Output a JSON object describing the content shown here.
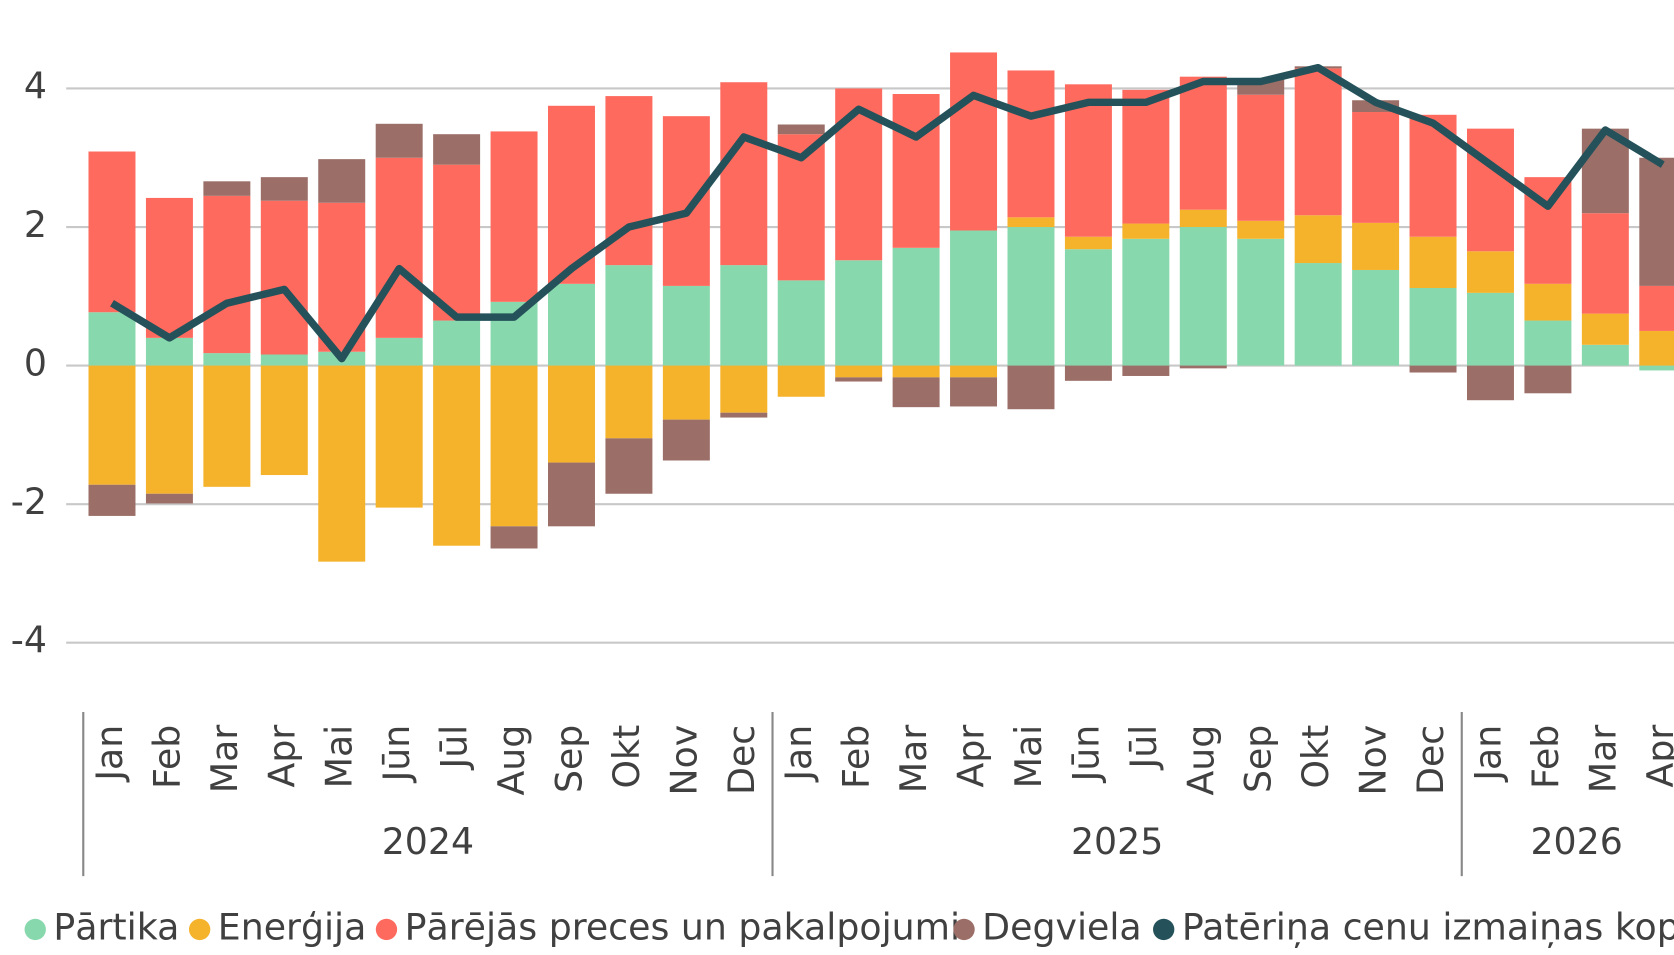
{
  "chart_data": {
    "type": "stacked_bar_line",
    "categories": [
      "Jan",
      "Feb",
      "Mar",
      "Apr",
      "Mai",
      "Jūn",
      "Jūl",
      "Aug",
      "Sep",
      "Okt",
      "Nov",
      "Dec",
      "Jan",
      "Feb",
      "Mar",
      "Apr",
      "Mai",
      "Jūn",
      "Jūl",
      "Aug",
      "Sep",
      "Okt",
      "Nov",
      "Dec",
      "Jan",
      "Feb",
      "Mar",
      "Apr"
    ],
    "years": [
      "2024",
      "2024",
      "2024",
      "2024",
      "2024",
      "2024",
      "2024",
      "2024",
      "2024",
      "2024",
      "2024",
      "2024",
      "2025",
      "2025",
      "2025",
      "2025",
      "2025",
      "2025",
      "2025",
      "2025",
      "2025",
      "2025",
      "2025",
      "2025",
      "2026",
      "2026",
      "2026",
      "2026"
    ],
    "series": [
      {
        "name": "Pārtika",
        "color": "#88d8ad",
        "values": [
          0.77,
          0.4,
          0.18,
          0.16,
          0.2,
          0.4,
          0.65,
          0.92,
          1.18,
          1.45,
          1.15,
          1.45,
          1.23,
          1.52,
          1.7,
          1.95,
          2.0,
          1.68,
          1.83,
          2.0,
          1.83,
          1.48,
          1.38,
          1.12,
          1.05,
          0.65,
          0.3,
          -0.07
        ]
      },
      {
        "name": "Enerģija",
        "color": "#f5b22b",
        "values": [
          -1.72,
          -1.85,
          -1.75,
          -1.58,
          -2.83,
          -2.05,
          -2.6,
          -2.32,
          -1.4,
          -1.05,
          -0.78,
          -0.68,
          -0.45,
          -0.17,
          -0.17,
          -0.17,
          0.14,
          0.18,
          0.22,
          0.25,
          0.26,
          0.69,
          0.68,
          0.74,
          0.6,
          0.53,
          0.45,
          0.5
        ]
      },
      {
        "name": "Pārējās preces un pakalpojumi",
        "color": "#fe6a5e",
        "values": [
          2.32,
          2.02,
          2.27,
          2.22,
          2.15,
          2.6,
          2.25,
          2.46,
          2.57,
          2.44,
          2.45,
          2.64,
          2.11,
          2.48,
          2.22,
          2.57,
          2.12,
          2.2,
          1.93,
          1.92,
          1.82,
          2.12,
          1.6,
          1.76,
          1.77,
          1.54,
          1.45,
          0.65
        ]
      },
      {
        "name": "Degviela",
        "color": "#9b6f68",
        "values": [
          -0.45,
          -0.14,
          0.21,
          0.34,
          0.63,
          0.49,
          0.44,
          -0.32,
          -0.92,
          -0.8,
          -0.59,
          -0.07,
          0.14,
          -0.06,
          -0.43,
          -0.42,
          -0.63,
          -0.22,
          -0.15,
          -0.04,
          0.24,
          0.03,
          0.17,
          -0.1,
          -0.5,
          -0.4,
          1.22,
          1.85
        ]
      },
      {
        "name": "Patēriņa cenu izmaiņas kopā",
        "color": "#25525a",
        "type": "line",
        "values": [
          0.9,
          0.4,
          0.9,
          1.1,
          0.1,
          1.4,
          0.7,
          0.7,
          1.4,
          2.0,
          2.2,
          3.3,
          3.0,
          3.7,
          3.3,
          3.9,
          3.6,
          3.8,
          3.8,
          4.1,
          4.1,
          4.3,
          3.8,
          3.5,
          2.9,
          2.3,
          3.4,
          2.9
        ]
      }
    ],
    "ylim": [
      -5,
      5
    ],
    "yticks": [
      -4,
      -2,
      0,
      2,
      4
    ],
    "grid": true
  }
}
